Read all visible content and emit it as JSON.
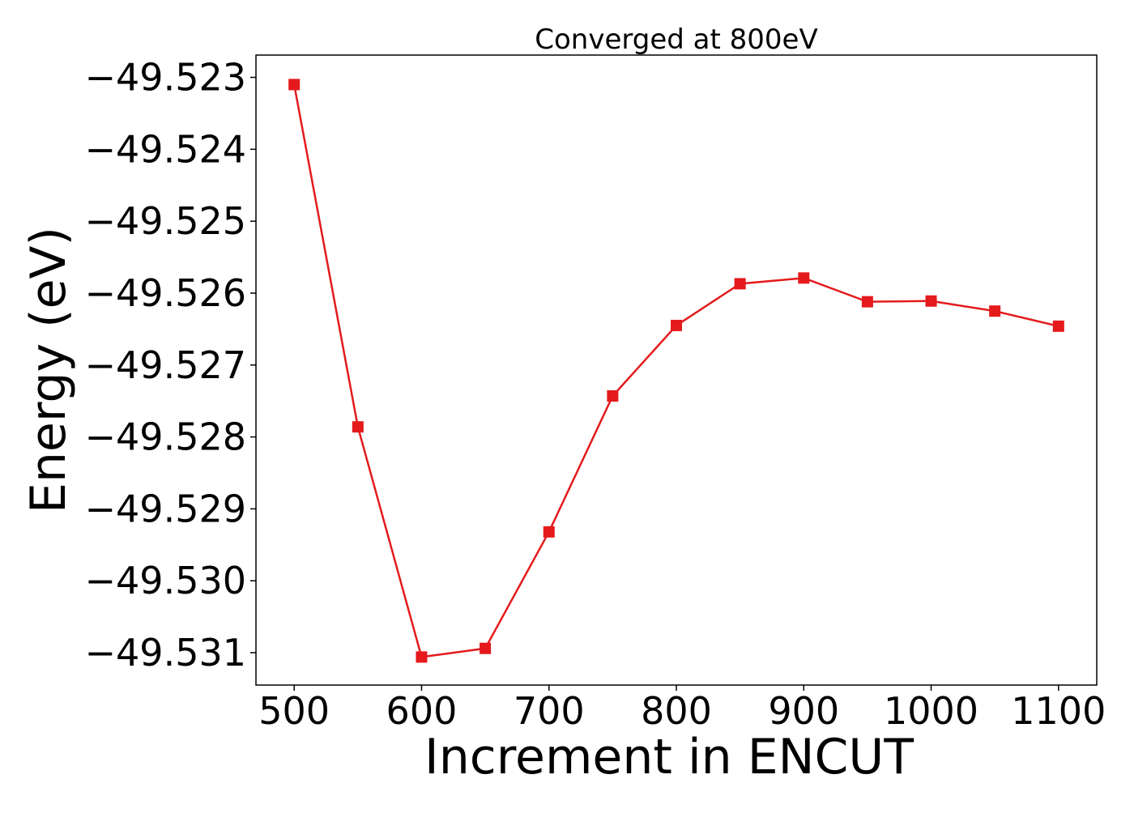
{
  "chart_data": {
    "type": "line",
    "title": "Converged at 800eV",
    "xlabel": "Increment in ENCUT",
    "ylabel": "Energy (eV)",
    "x": [
      500,
      550,
      600,
      650,
      700,
      750,
      800,
      850,
      900,
      950,
      1000,
      1050,
      1100
    ],
    "series": [
      {
        "values": [
          -49.5231,
          -49.52786,
          -49.53106,
          -49.53094,
          -49.52932,
          -49.52743,
          -49.52645,
          -49.52587,
          -49.52579,
          -49.52612,
          -49.52611,
          -49.52625,
          -49.52646
        ],
        "color": "#e41a1c",
        "marker": "square"
      }
    ],
    "xlim": [
      470,
      1130
    ],
    "ylim": [
      -49.53145,
      -49.52269
    ],
    "xticks": [
      500,
      600,
      700,
      800,
      900,
      1000,
      1100
    ],
    "xtick_labels": [
      "500",
      "600",
      "700",
      "800",
      "900",
      "1000",
      "1100"
    ],
    "yticks": [
      -49.523,
      -49.524,
      -49.525,
      -49.526,
      -49.527,
      -49.528,
      -49.529,
      -49.53,
      -49.531
    ],
    "ytick_labels": [
      "−49.523",
      "−49.524",
      "−49.525",
      "−49.526",
      "−49.527",
      "−49.528",
      "−49.529",
      "−49.530",
      "−49.531"
    ],
    "grid": false,
    "legend": "none"
  }
}
